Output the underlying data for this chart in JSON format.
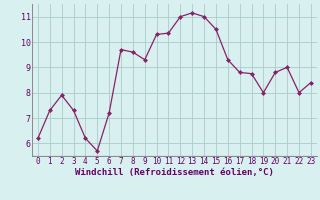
{
  "x": [
    0,
    1,
    2,
    3,
    4,
    5,
    6,
    7,
    8,
    9,
    10,
    11,
    12,
    13,
    14,
    15,
    16,
    17,
    18,
    19,
    20,
    21,
    22,
    23
  ],
  "y": [
    6.2,
    7.3,
    7.9,
    7.3,
    6.2,
    5.7,
    7.2,
    9.7,
    9.6,
    9.3,
    10.3,
    10.35,
    11.0,
    11.15,
    11.0,
    10.5,
    9.3,
    8.8,
    8.75,
    8.0,
    8.8,
    9.0,
    8.0,
    8.4
  ],
  "line_color": "#882266",
  "marker": "D",
  "markersize": 2.0,
  "linewidth": 0.9,
  "bg_color": "#d8f0f0",
  "grid_color": "#aacccc",
  "xlabel": "Windchill (Refroidissement éolien,°C)",
  "xlabel_fontsize": 6.5,
  "xlabel_color": "#660066",
  "tick_color": "#660066",
  "ylim": [
    5.5,
    11.5
  ],
  "yticks": [
    6,
    7,
    8,
    9,
    10,
    11
  ],
  "xticks": [
    0,
    1,
    2,
    3,
    4,
    5,
    6,
    7,
    8,
    9,
    10,
    11,
    12,
    13,
    14,
    15,
    16,
    17,
    18,
    19,
    20,
    21,
    22,
    23
  ],
  "tick_fontsize": 5.5,
  "spine_color": "#888888"
}
